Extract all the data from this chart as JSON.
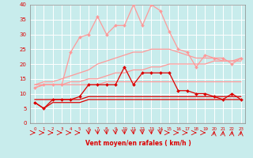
{
  "xlabel": "Vent moyen/en rafales ( km/h )",
  "background_color": "#c8ecec",
  "grid_color": "#ffffff",
  "x": [
    0,
    1,
    2,
    3,
    4,
    5,
    6,
    7,
    8,
    9,
    10,
    11,
    12,
    13,
    14,
    15,
    16,
    17,
    18,
    19,
    20,
    21,
    22,
    23
  ],
  "ylim": [
    0,
    40
  ],
  "xlim": [
    -0.5,
    23.5
  ],
  "yticks": [
    0,
    5,
    10,
    15,
    20,
    25,
    30,
    35,
    40
  ],
  "series": [
    {
      "name": "pink_spiky",
      "values": [
        12,
        13,
        13,
        13,
        24,
        29,
        30,
        36,
        30,
        33,
        33,
        40,
        33,
        40,
        38,
        31,
        25,
        24,
        19,
        23,
        22,
        22,
        20,
        22
      ],
      "color": "#ff9999",
      "linewidth": 0.9,
      "marker": "D",
      "markersize": 2.0,
      "zorder": 3
    },
    {
      "name": "pink_upper_diag",
      "values": [
        13,
        14,
        14,
        15,
        16,
        17,
        18,
        20,
        21,
        22,
        23,
        24,
        24,
        25,
        25,
        25,
        24,
        23,
        22,
        22,
        22,
        21,
        21,
        21
      ],
      "color": "#ff9999",
      "linewidth": 0.9,
      "marker": null,
      "markersize": 0,
      "zorder": 2
    },
    {
      "name": "pink_lower_diag",
      "values": [
        13,
        13,
        13,
        13,
        14,
        14,
        15,
        15,
        16,
        17,
        17,
        18,
        18,
        19,
        19,
        20,
        20,
        20,
        20,
        20,
        21,
        21,
        21,
        22
      ],
      "color": "#ff9999",
      "linewidth": 0.9,
      "marker": null,
      "markersize": 0,
      "zorder": 2
    },
    {
      "name": "pink_flat",
      "values": [
        12,
        13,
        13,
        13,
        13,
        13,
        13,
        13,
        14,
        14,
        14,
        14,
        14,
        14,
        14,
        14,
        14,
        14,
        14,
        14,
        14,
        14,
        14,
        14
      ],
      "color": "#ff9999",
      "linewidth": 0.9,
      "marker": null,
      "markersize": 0,
      "zorder": 2
    },
    {
      "name": "red_spiky",
      "values": [
        7,
        5,
        8,
        8,
        8,
        9,
        13,
        13,
        13,
        13,
        19,
        13,
        17,
        17,
        17,
        17,
        11,
        11,
        10,
        10,
        9,
        8,
        10,
        8
      ],
      "color": "#dd0000",
      "linewidth": 0.9,
      "marker": "D",
      "markersize": 2.0,
      "zorder": 4
    },
    {
      "name": "red_flat1",
      "values": [
        8,
        8,
        8,
        8,
        8,
        8,
        9,
        9,
        9,
        9,
        9,
        9,
        9,
        9,
        9,
        9,
        9,
        9,
        9,
        9,
        9,
        9,
        9,
        9
      ],
      "color": "#dd0000",
      "linewidth": 0.9,
      "marker": null,
      "markersize": 0,
      "zorder": 3
    },
    {
      "name": "red_flat2",
      "values": [
        7,
        5,
        7,
        7,
        7,
        7,
        8,
        8,
        8,
        8,
        8,
        8,
        8,
        8,
        8,
        8,
        8,
        8,
        8,
        8,
        8,
        8,
        8,
        8
      ],
      "color": "#dd0000",
      "linewidth": 0.9,
      "marker": null,
      "markersize": 0,
      "zorder": 3
    }
  ],
  "wind_arrow_angles": [
    90,
    90,
    90,
    90,
    90,
    90,
    45,
    45,
    45,
    45,
    45,
    45,
    45,
    45,
    45,
    90,
    90,
    90,
    90,
    90,
    135,
    135,
    135,
    135
  ],
  "arrow_color": "#ff0000"
}
